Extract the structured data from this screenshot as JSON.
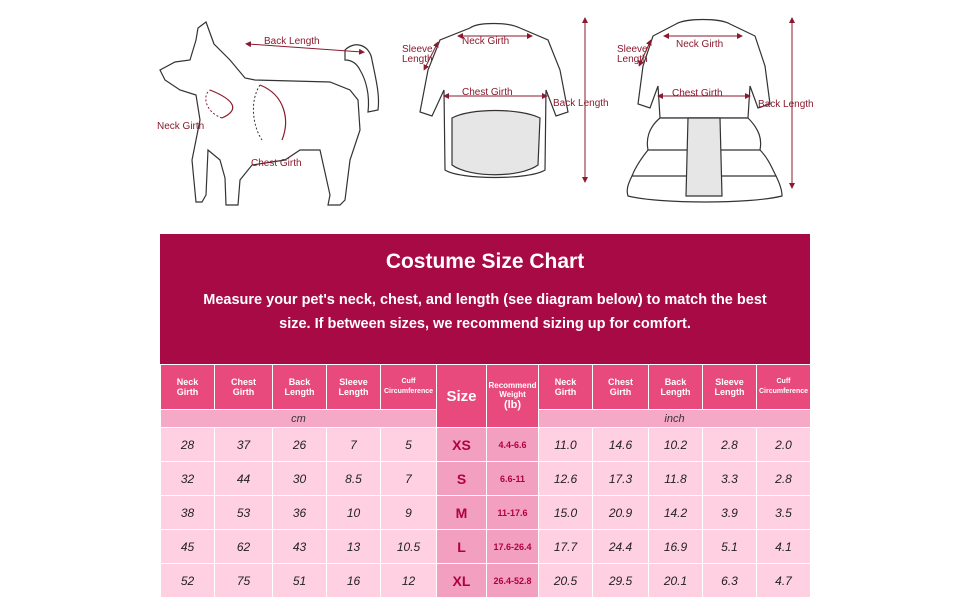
{
  "diagrams": {
    "dog": {
      "back_length": "Back Length",
      "neck_girth": "Neck Girth",
      "chest_girth": "Chest Girth"
    },
    "shirt": {
      "neck_girth": "Neck Girth",
      "sleeve_length": "Sleeve Length",
      "chest_girth": "Chest Girth",
      "back_length": "Back Length"
    },
    "dress": {
      "neck_girth": "Neck Girth",
      "sleeve_length": "Sleeve Length",
      "chest_girth": "Chest Girth",
      "back_length": "Back Length"
    }
  },
  "banner": {
    "title": "Costume Size Chart",
    "subtitle": "Measure your pet's neck, chest, and length (see diagram below) to match the best size. If between sizes, we recommend sizing up for comfort."
  },
  "table": {
    "headers_cm": [
      [
        "Neck",
        "Girth"
      ],
      [
        "Chest",
        "Girth"
      ],
      [
        "Back",
        "Length"
      ],
      [
        "Sleeve",
        "Length"
      ],
      [
        "Cuff",
        "Circumference"
      ]
    ],
    "size_header": "Size",
    "weight_header": [
      "Recommend",
      "Weight"
    ],
    "weight_unit": "(lb)",
    "headers_inch": [
      [
        "Neck",
        "Girth"
      ],
      [
        "Chest",
        "Girth"
      ],
      [
        "Back",
        "Length"
      ],
      [
        "Sleeve",
        "Length"
      ],
      [
        "Cuff",
        "Circumference"
      ]
    ],
    "unit_cm": "cm",
    "unit_inch": "inch",
    "rows": [
      {
        "cm": [
          "28",
          "37",
          "26",
          "7",
          "5"
        ],
        "size": "XS",
        "weight": "4.4-6.6",
        "inch": [
          "11.0",
          "14.6",
          "10.2",
          "2.8",
          "2.0"
        ]
      },
      {
        "cm": [
          "32",
          "44",
          "30",
          "8.5",
          "7"
        ],
        "size": "S",
        "weight": "6.6-11",
        "inch": [
          "12.6",
          "17.3",
          "11.8",
          "3.3",
          "2.8"
        ]
      },
      {
        "cm": [
          "38",
          "53",
          "36",
          "10",
          "9"
        ],
        "size": "M",
        "weight": "11-17.6",
        "inch": [
          "15.0",
          "20.9",
          "14.2",
          "3.9",
          "3.5"
        ]
      },
      {
        "cm": [
          "45",
          "62",
          "43",
          "13",
          "10.5"
        ],
        "size": "L",
        "weight": "17.6-26.4",
        "inch": [
          "17.7",
          "24.4",
          "16.9",
          "5.1",
          "4.1"
        ]
      },
      {
        "cm": [
          "52",
          "75",
          "51",
          "16",
          "12"
        ],
        "size": "XL",
        "weight": "26.4-52.8",
        "inch": [
          "20.5",
          "29.5",
          "20.1",
          "6.3",
          "4.7"
        ]
      }
    ]
  }
}
